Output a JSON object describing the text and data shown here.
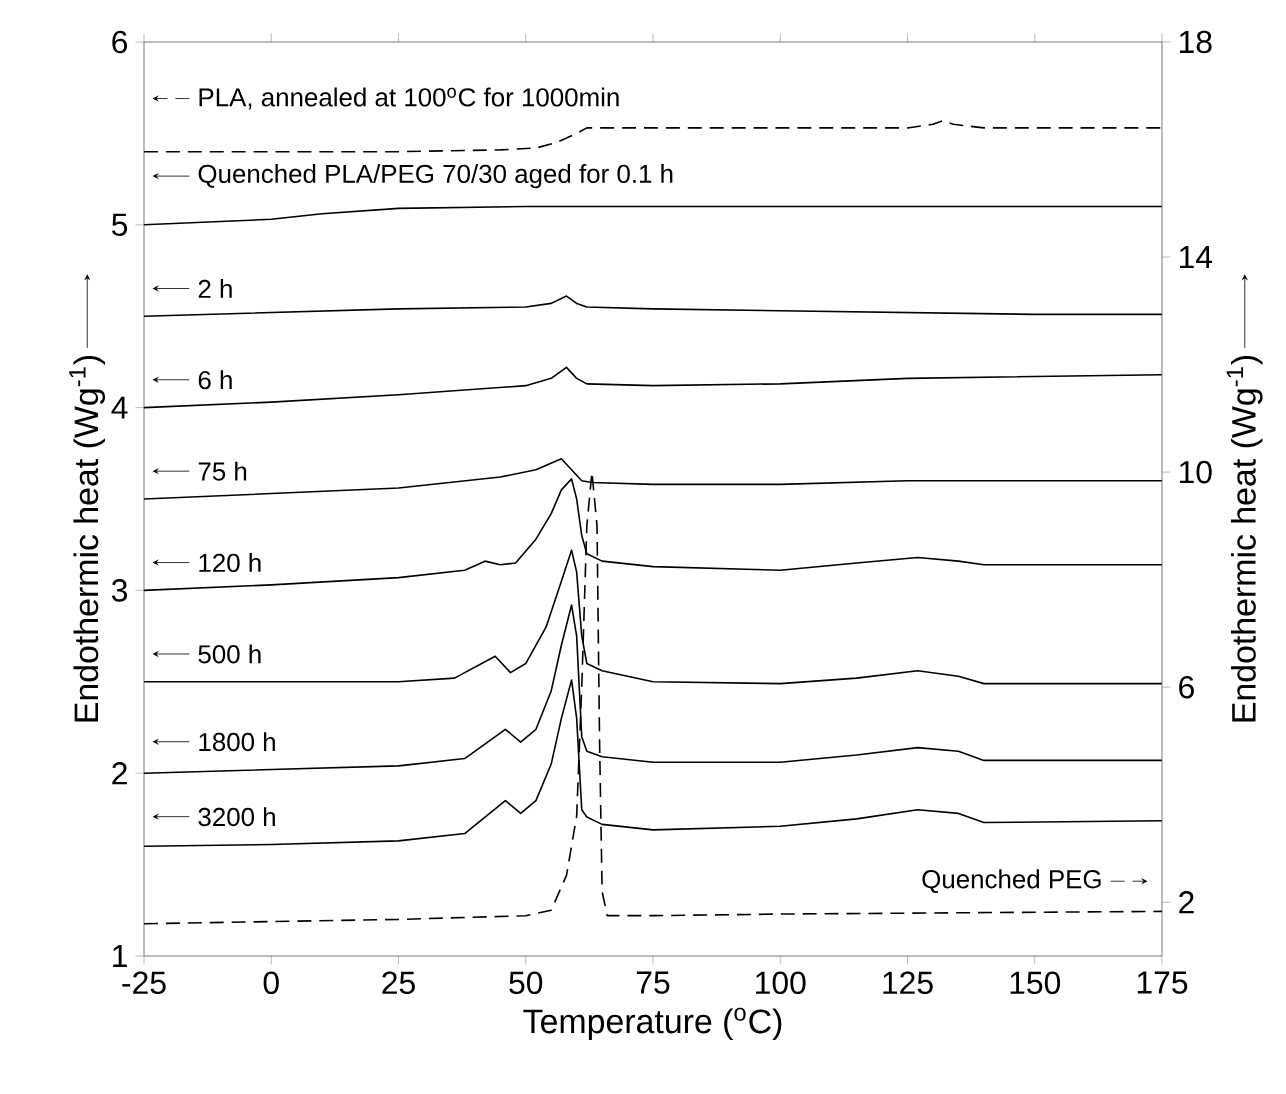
{
  "chart_data": {
    "type": "line",
    "xlabel": "Temperature ($^{o}$C)",
    "ylabel": "Endothermic heat (Wg$^{-1}$)",
    "y2label": "Endothermic heat (Wg$^{-1}$)",
    "xlim": [
      -25,
      175
    ],
    "xticks": [
      -25,
      0,
      25,
      50,
      75,
      100,
      125,
      150,
      175
    ],
    "ylim": [
      1,
      6
    ],
    "yticks": [
      1,
      2,
      3,
      4,
      5,
      6
    ],
    "y2lim": [
      1,
      18
    ],
    "y2ticks": [
      2,
      6,
      10,
      14,
      18
    ],
    "legend": "left",
    "series": [
      {
        "name": "PLA, annealed at 100$^{o}$C for 1000min",
        "color": "#000000",
        "line_style": "dashed",
        "x": [
          -25,
          0,
          25,
          45,
          52,
          56,
          60,
          62,
          65,
          100,
          125,
          130,
          132,
          134,
          140,
          175
        ],
        "values": [
          5.4,
          5.4,
          5.4,
          5.41,
          5.42,
          5.45,
          5.5,
          5.53,
          5.53,
          5.53,
          5.53,
          5.55,
          5.57,
          5.55,
          5.53,
          5.53
        ]
      },
      {
        "name": "Quenched PLA/PEG 70/30 aged for 0.1 h",
        "color": "#000000",
        "line_style": "solid",
        "x": [
          -25,
          0,
          10,
          25,
          50,
          100,
          175
        ],
        "values": [
          5.0,
          5.03,
          5.06,
          5.09,
          5.1,
          5.1,
          5.1
        ]
      },
      {
        "name": "2 h",
        "color": "#000000",
        "line_style": "solid",
        "x": [
          -25,
          0,
          25,
          50,
          55,
          58,
          60,
          62,
          75,
          100,
          125,
          150,
          175
        ],
        "values": [
          4.5,
          4.52,
          4.54,
          4.55,
          4.57,
          4.61,
          4.57,
          4.55,
          4.54,
          4.53,
          4.52,
          4.51,
          4.51
        ]
      },
      {
        "name": "6 h",
        "color": "#000000",
        "line_style": "solid",
        "x": [
          -25,
          0,
          25,
          50,
          55,
          58,
          60,
          62,
          75,
          100,
          125,
          150,
          175
        ],
        "values": [
          4.0,
          4.03,
          4.07,
          4.12,
          4.16,
          4.22,
          4.16,
          4.13,
          4.12,
          4.13,
          4.16,
          4.17,
          4.18
        ]
      },
      {
        "name": "75 h",
        "color": "#000000",
        "line_style": "solid",
        "x": [
          -25,
          0,
          25,
          45,
          52,
          57,
          59,
          61,
          63,
          75,
          100,
          125,
          150,
          175
        ],
        "values": [
          3.5,
          3.53,
          3.56,
          3.62,
          3.66,
          3.72,
          3.66,
          3.6,
          3.59,
          3.58,
          3.58,
          3.6,
          3.6,
          3.6
        ]
      },
      {
        "name": "120 h",
        "color": "#000000",
        "line_style": "solid",
        "x": [
          -25,
          0,
          25,
          38,
          42,
          45,
          48,
          52,
          55,
          57,
          59,
          60,
          61,
          62,
          65,
          75,
          100,
          115,
          127,
          135,
          140,
          175
        ],
        "values": [
          3.0,
          3.03,
          3.07,
          3.11,
          3.16,
          3.14,
          3.15,
          3.28,
          3.42,
          3.55,
          3.61,
          3.5,
          3.3,
          3.2,
          3.16,
          3.13,
          3.11,
          3.15,
          3.18,
          3.16,
          3.14,
          3.14
        ]
      },
      {
        "name": "500 h",
        "color": "#000000",
        "line_style": "solid",
        "x": [
          -25,
          0,
          25,
          36,
          40,
          44,
          47,
          50,
          54,
          57,
          59,
          60,
          61,
          62,
          65,
          75,
          100,
          115,
          127,
          135,
          140,
          175
        ],
        "values": [
          2.5,
          2.5,
          2.5,
          2.52,
          2.58,
          2.64,
          2.55,
          2.6,
          2.8,
          3.05,
          3.22,
          3.1,
          2.75,
          2.6,
          2.56,
          2.5,
          2.49,
          2.52,
          2.56,
          2.53,
          2.49,
          2.49
        ]
      },
      {
        "name": "1800 h",
        "color": "#000000",
        "line_style": "solid",
        "x": [
          -25,
          0,
          25,
          38,
          42,
          46,
          49,
          52,
          55,
          57,
          59,
          60,
          61,
          62,
          65,
          75,
          100,
          115,
          127,
          135,
          140,
          175
        ],
        "values": [
          2.0,
          2.02,
          2.04,
          2.08,
          2.16,
          2.24,
          2.17,
          2.24,
          2.45,
          2.7,
          2.92,
          2.75,
          2.2,
          2.12,
          2.09,
          2.06,
          2.06,
          2.1,
          2.14,
          2.12,
          2.07,
          2.07
        ]
      },
      {
        "name": "3200 h",
        "color": "#000000",
        "line_style": "solid",
        "x": [
          -25,
          0,
          25,
          38,
          42,
          46,
          49,
          52,
          55,
          57,
          59,
          60,
          61,
          62,
          65,
          75,
          100,
          115,
          127,
          135,
          140,
          175
        ],
        "values": [
          1.6,
          1.61,
          1.63,
          1.67,
          1.76,
          1.85,
          1.78,
          1.85,
          2.05,
          2.3,
          2.51,
          2.3,
          1.8,
          1.76,
          1.72,
          1.69,
          1.71,
          1.75,
          1.8,
          1.78,
          1.73,
          1.74
        ]
      },
      {
        "name": "Quenched PEG",
        "color": "#000000",
        "line_style": "dashed",
        "axis": "y2",
        "x": [
          -25,
          0,
          25,
          50,
          55,
          58,
          60,
          61,
          62,
          63,
          64,
          64.5,
          65,
          66,
          75,
          100,
          175
        ],
        "values": [
          1.6,
          1.64,
          1.68,
          1.75,
          1.85,
          2.5,
          3.6,
          6,
          9,
          10,
          9,
          5,
          2.2,
          1.75,
          1.75,
          1.78,
          1.83
        ]
      }
    ]
  }
}
